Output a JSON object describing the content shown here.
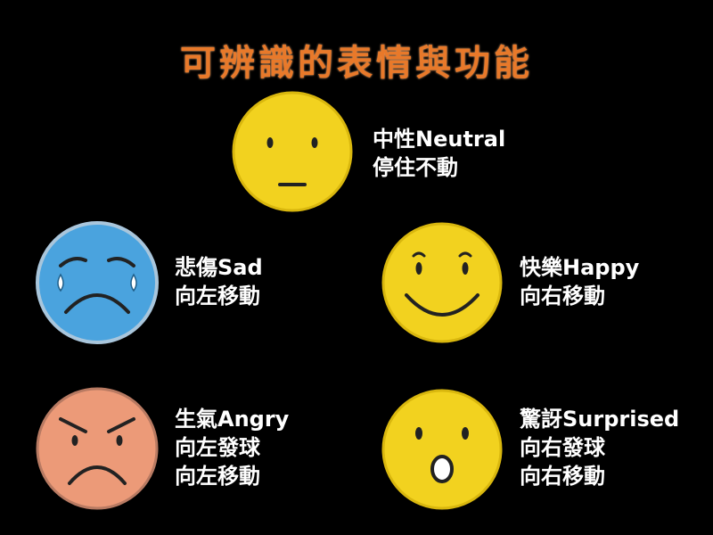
{
  "title": "可辨識的表情與功能",
  "faces": {
    "neutral": {
      "name": "中性Neutral",
      "lines": [
        "停住不動"
      ],
      "color": "#f2d21f",
      "icon": "neutral-face-icon"
    },
    "sad": {
      "name": "悲傷Sad",
      "lines": [
        "向左移動"
      ],
      "color": "#4aa3de",
      "icon": "sad-face-icon"
    },
    "happy": {
      "name": "快樂Happy",
      "lines": [
        "向右移動"
      ],
      "color": "#f2d21f",
      "icon": "happy-face-icon"
    },
    "angry": {
      "name": "生氣Angry",
      "lines": [
        "向左發球",
        "向左移動"
      ],
      "color": "#ec9a78",
      "icon": "angry-face-icon"
    },
    "surprised": {
      "name": "驚訝Surprised",
      "lines": [
        "向右發球",
        "向右移動"
      ],
      "color": "#f2d21f",
      "icon": "surprised-face-icon"
    }
  }
}
